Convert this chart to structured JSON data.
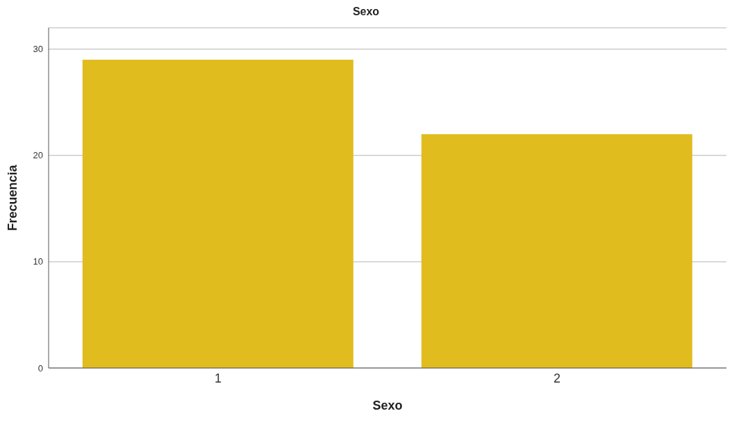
{
  "chart_data": {
    "type": "bar",
    "title": "Sexo",
    "xlabel": "Sexo",
    "ylabel": "Frecuencia",
    "categories": [
      "1",
      "2"
    ],
    "values": [
      29,
      22
    ],
    "color": "#e0bc1f",
    "ylim": [
      0,
      32
    ],
    "yticks": [
      0,
      10,
      20,
      30
    ],
    "grid": "y"
  }
}
